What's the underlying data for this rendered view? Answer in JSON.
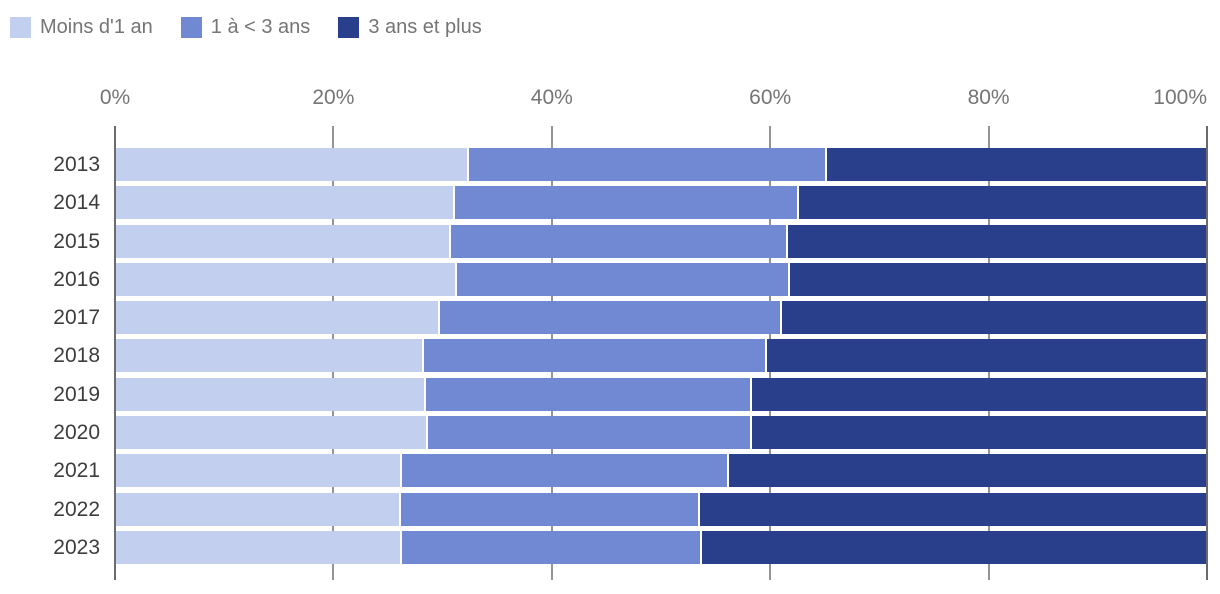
{
  "chart_data": {
    "type": "bar",
    "orientation": "horizontal",
    "stacked": true,
    "unit": "%",
    "title": "",
    "legend_position": "top-left",
    "grid": true,
    "categories": [
      "2013",
      "2014",
      "2015",
      "2016",
      "2017",
      "2018",
      "2019",
      "2020",
      "2021",
      "2022",
      "2023"
    ],
    "series": [
      {
        "name": "Moins d'1 an",
        "color": "#c3cfee",
        "values": [
          32.4,
          31.1,
          30.8,
          31.3,
          29.8,
          28.3,
          28.5,
          28.7,
          26.3,
          26.2,
          26.3
        ]
      },
      {
        "name": "1 à < 3 ans",
        "color": "#7189d3",
        "values": [
          32.8,
          31.5,
          30.8,
          30.5,
          31.3,
          31.4,
          29.8,
          29.6,
          29.9,
          27.4,
          27.5
        ]
      },
      {
        "name": "3 ans et plus",
        "color": "#2a3f8c",
        "values": [
          34.8,
          37.4,
          38.4,
          38.2,
          38.9,
          40.3,
          41.7,
          41.7,
          43.8,
          46.4,
          46.2
        ]
      }
    ],
    "x_axis": {
      "position": "top",
      "min": 0,
      "max": 100,
      "ticks": [
        "0%",
        "20%",
        "40%",
        "60%",
        "80%",
        "100%"
      ]
    },
    "colors": {
      "grid_line": "#949494",
      "axis_edge_line": "#6b6b6b",
      "axis_text": "#757575",
      "category_text": "#3d3d3d",
      "segment_separator": "#ffffff",
      "background": "#ffffff"
    }
  }
}
